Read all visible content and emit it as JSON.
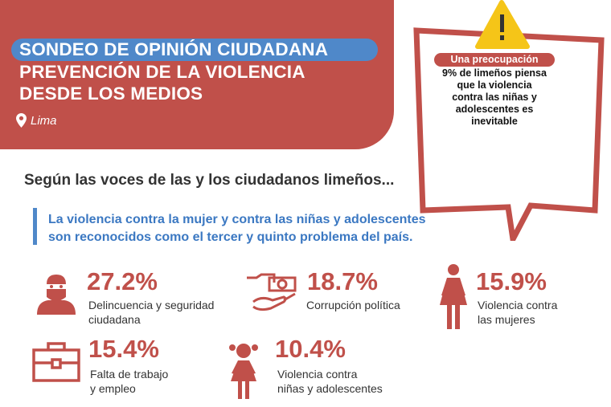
{
  "header": {
    "line1": "SONDEO DE OPINIÓN CIUDADANA",
    "line2": "PREVENCIÓN DE LA VIOLENCIA",
    "line3": "DESDE LOS MEDIOS",
    "location": "Lima"
  },
  "callout": {
    "badge": "Una preocupación",
    "lines": [
      "9% de limeños piensa",
      "que la violencia",
      "contra las niñas y",
      "adolescentes es",
      "inevitable"
    ]
  },
  "subtitle": "Según las voces de las y los ciudadanos limeños...",
  "lead": [
    "La violencia contra la mujer y contra las niñas y adolescentes",
    "son reconocidos como el tercer y quinto problema del país."
  ],
  "stats": [
    {
      "value": "27.2%",
      "label": [
        "Delincuencia y seguridad",
        "ciudadana"
      ],
      "icon": "thief-icon"
    },
    {
      "value": "18.7%",
      "label": [
        "Corrupción política"
      ],
      "icon": "bribe-icon"
    },
    {
      "value": "15.9%",
      "label": [
        "Violencia contra",
        "las mujeres"
      ],
      "icon": "woman-icon"
    },
    {
      "value": "15.4%",
      "label": [
        "Falta de trabajo",
        "y empleo"
      ],
      "icon": "briefcase-icon"
    },
    {
      "value": "10.4%",
      "label": [
        "Violencia contra",
        "niñas y adolescentes"
      ],
      "icon": "girl-icon"
    }
  ],
  "colors": {
    "red": "#c0504a",
    "blue": "#4f88c9",
    "yellow": "#f5c518"
  }
}
